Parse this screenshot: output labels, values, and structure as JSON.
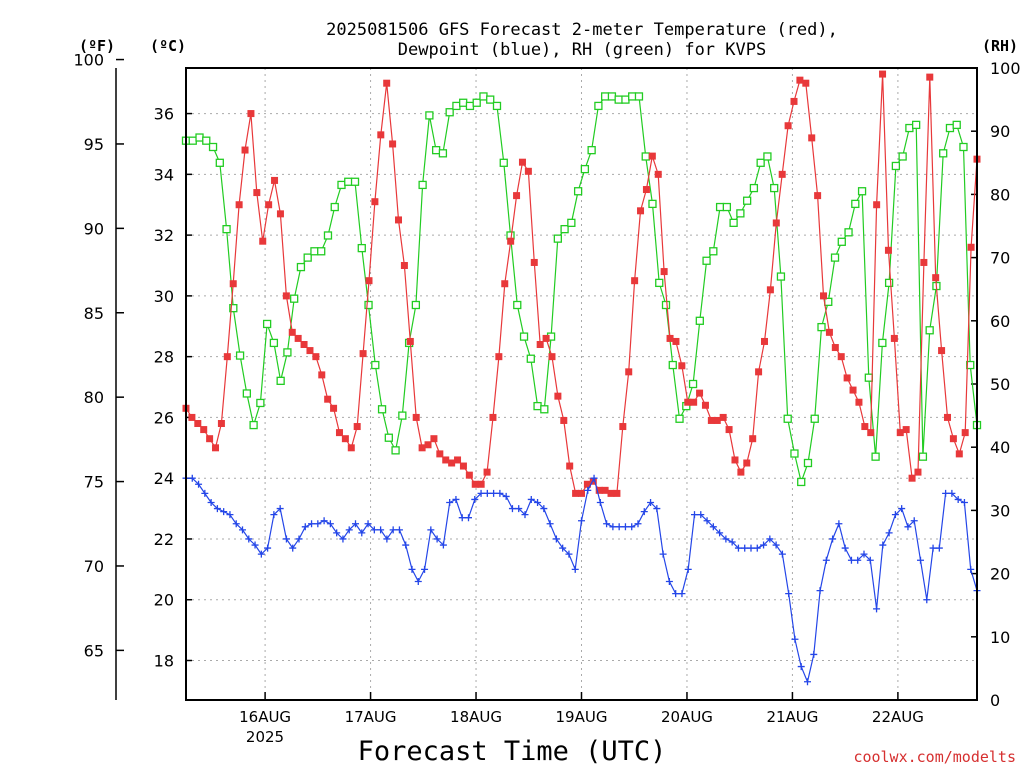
{
  "chart_data": {
    "type": "line",
    "title_line1": "2025081506 GFS Forecast 2-meter Temperature (red),",
    "title_line2": "Dewpoint (blue), RH (green) for KVPS",
    "unit_f": "(ºF)",
    "unit_c": "(ºC)",
    "unit_rh": "(RH)",
    "xlabel": "Forecast Time (UTC)",
    "year_label": "2025",
    "credit": "coolwx.com/modelts",
    "x_ticks": [
      {
        "day": 1,
        "label": "16AUG"
      },
      {
        "day": 2,
        "label": "17AUG"
      },
      {
        "day": 3,
        "label": "18AUG"
      },
      {
        "day": 4,
        "label": "19AUG"
      },
      {
        "day": 5,
        "label": "20AUG"
      },
      {
        "day": 6,
        "label": "21AUG"
      },
      {
        "day": 7,
        "label": "22AUG"
      }
    ],
    "xlim_days": [
      0.25,
      7.75
    ],
    "c_axis": {
      "ylim": [
        16.7,
        37.5
      ],
      "ticks": [
        18,
        20,
        22,
        24,
        26,
        28,
        30,
        32,
        34,
        36
      ]
    },
    "f_axis": {
      "ylim": [
        62.06,
        99.5
      ],
      "ticks": [
        65,
        70,
        75,
        80,
        85,
        90,
        95,
        100
      ]
    },
    "rh_axis": {
      "ylim": [
        0,
        100
      ],
      "ticks": [
        0,
        10,
        20,
        30,
        40,
        50,
        60,
        70,
        80,
        90,
        100
      ]
    },
    "colors": {
      "temperature": "#e8383a",
      "dewpoint": "#2446e8",
      "rh": "#22cc22",
      "grid": "#aaaaaa"
    },
    "series": [
      {
        "name": "Temperature (red)",
        "axis": "c",
        "marker": "filled-square",
        "values": [
          26.3,
          26.0,
          25.8,
          25.6,
          25.3,
          25.0,
          25.8,
          28.0,
          30.4,
          33.0,
          34.8,
          36.0,
          33.4,
          31.8,
          33.0,
          33.8,
          32.7,
          30.0,
          28.8,
          28.6,
          28.4,
          28.2,
          28.0,
          27.4,
          26.6,
          26.3,
          25.5,
          25.3,
          25.0,
          25.7,
          28.1,
          30.5,
          33.1,
          35.3,
          37.0,
          35.0,
          32.5,
          31.0,
          28.5,
          26.0,
          25.0,
          25.1,
          25.3,
          24.8,
          24.6,
          24.5,
          24.6,
          24.4,
          24.1,
          23.8,
          23.8,
          24.2,
          26.0,
          28.0,
          30.4,
          31.8,
          33.3,
          34.4,
          34.1,
          31.1,
          28.4,
          28.6,
          28.0,
          26.7,
          25.9,
          24.4,
          23.5,
          23.5,
          23.8,
          23.9,
          23.6,
          23.6,
          23.5,
          23.5,
          25.7,
          27.5,
          30.5,
          32.8,
          33.5,
          34.6,
          34.0,
          30.8,
          28.6,
          28.5,
          27.7,
          26.5,
          26.5,
          26.8,
          26.4,
          25.9,
          25.9,
          26.0,
          25.6,
          24.6,
          24.2,
          24.5,
          25.3,
          27.5,
          28.5,
          30.2,
          32.4,
          34.0,
          35.6,
          36.4,
          37.1,
          37.0,
          35.2,
          33.3,
          30.0,
          28.8,
          28.3,
          28.0,
          27.3,
          26.9,
          26.5,
          25.7,
          25.5,
          33.0,
          37.3,
          31.5,
          28.6,
          25.5,
          25.6,
          24.0,
          24.2,
          31.1,
          37.2,
          30.6,
          28.2,
          26.0,
          25.3,
          24.8,
          25.5,
          31.6,
          34.5
        ]
      },
      {
        "name": "Dewpoint (blue)",
        "axis": "c",
        "marker": "plus",
        "values": [
          24.0,
          24.0,
          23.8,
          23.5,
          23.2,
          23.0,
          22.9,
          22.8,
          22.5,
          22.3,
          22.0,
          21.8,
          21.5,
          21.7,
          22.8,
          23.0,
          22.0,
          21.7,
          22.0,
          22.4,
          22.5,
          22.5,
          22.6,
          22.5,
          22.2,
          22.0,
          22.3,
          22.5,
          22.2,
          22.5,
          22.3,
          22.3,
          22.0,
          22.3,
          22.3,
          21.8,
          21.0,
          20.6,
          21.0,
          22.3,
          22.0,
          21.8,
          23.2,
          23.3,
          22.7,
          22.7,
          23.3,
          23.5,
          23.5,
          23.5,
          23.5,
          23.4,
          23.0,
          23.0,
          22.8,
          23.3,
          23.2,
          23.0,
          22.5,
          22.0,
          21.7,
          21.5,
          21.0,
          22.6,
          23.6,
          24.0,
          23.2,
          22.5,
          22.4,
          22.4,
          22.4,
          22.4,
          22.5,
          22.9,
          23.2,
          23.0,
          21.5,
          20.6,
          20.2,
          20.2,
          21.0,
          22.8,
          22.8,
          22.6,
          22.4,
          22.2,
          22.0,
          21.9,
          21.7,
          21.7,
          21.7,
          21.7,
          21.8,
          22.0,
          21.8,
          21.5,
          20.2,
          18.7,
          17.8,
          17.3,
          18.2,
          20.3,
          21.3,
          22.0,
          22.5,
          21.7,
          21.3,
          21.3,
          21.5,
          21.3,
          19.7,
          21.8,
          22.2,
          22.8,
          23.0,
          22.4,
          22.6,
          21.3,
          20.0,
          21.7,
          21.7,
          23.5,
          23.5,
          23.3,
          23.2,
          21.0,
          20.3
        ]
      },
      {
        "name": "RH (green)",
        "axis": "rh",
        "marker": "open-square",
        "values": [
          88.5,
          88.5,
          89.0,
          88.5,
          87.5,
          85.0,
          74.5,
          62.0,
          54.5,
          48.5,
          43.5,
          47.0,
          59.5,
          56.5,
          50.5,
          55.0,
          63.5,
          68.5,
          70.0,
          71.0,
          71.0,
          73.5,
          78.0,
          81.5,
          82.0,
          82.0,
          71.5,
          62.5,
          53.0,
          46.0,
          41.5,
          39.5,
          45.0,
          56.5,
          62.5,
          81.5,
          92.5,
          87.0,
          86.5,
          93.0,
          94.0,
          94.5,
          94.0,
          94.5,
          95.5,
          95.0,
          94.0,
          85.0,
          73.5,
          62.5,
          57.5,
          54.0,
          46.5,
          46.0,
          57.5,
          73.0,
          74.5,
          75.5,
          80.5,
          84.0,
          87.0,
          94.0,
          95.5,
          95.5,
          95.0,
          95.0,
          95.5,
          95.5,
          86.0,
          78.5,
          66.0,
          62.5,
          53.0,
          44.5,
          46.5,
          50.0,
          60.0,
          69.5,
          71.0,
          78.0,
          78.0,
          75.5,
          77.0,
          79.0,
          81.0,
          85.0,
          86.0,
          81.0,
          67.0,
          44.5,
          39.0,
          34.5,
          37.5,
          44.5,
          59.0,
          63.0,
          70.0,
          72.5,
          74.0,
          78.5,
          80.5,
          51.0,
          38.5,
          56.5,
          66.0,
          84.5,
          86.0,
          90.5,
          91.0,
          38.5,
          58.5,
          65.5,
          86.5,
          90.5,
          91.0,
          87.5,
          53.0,
          43.5
        ]
      }
    ]
  }
}
